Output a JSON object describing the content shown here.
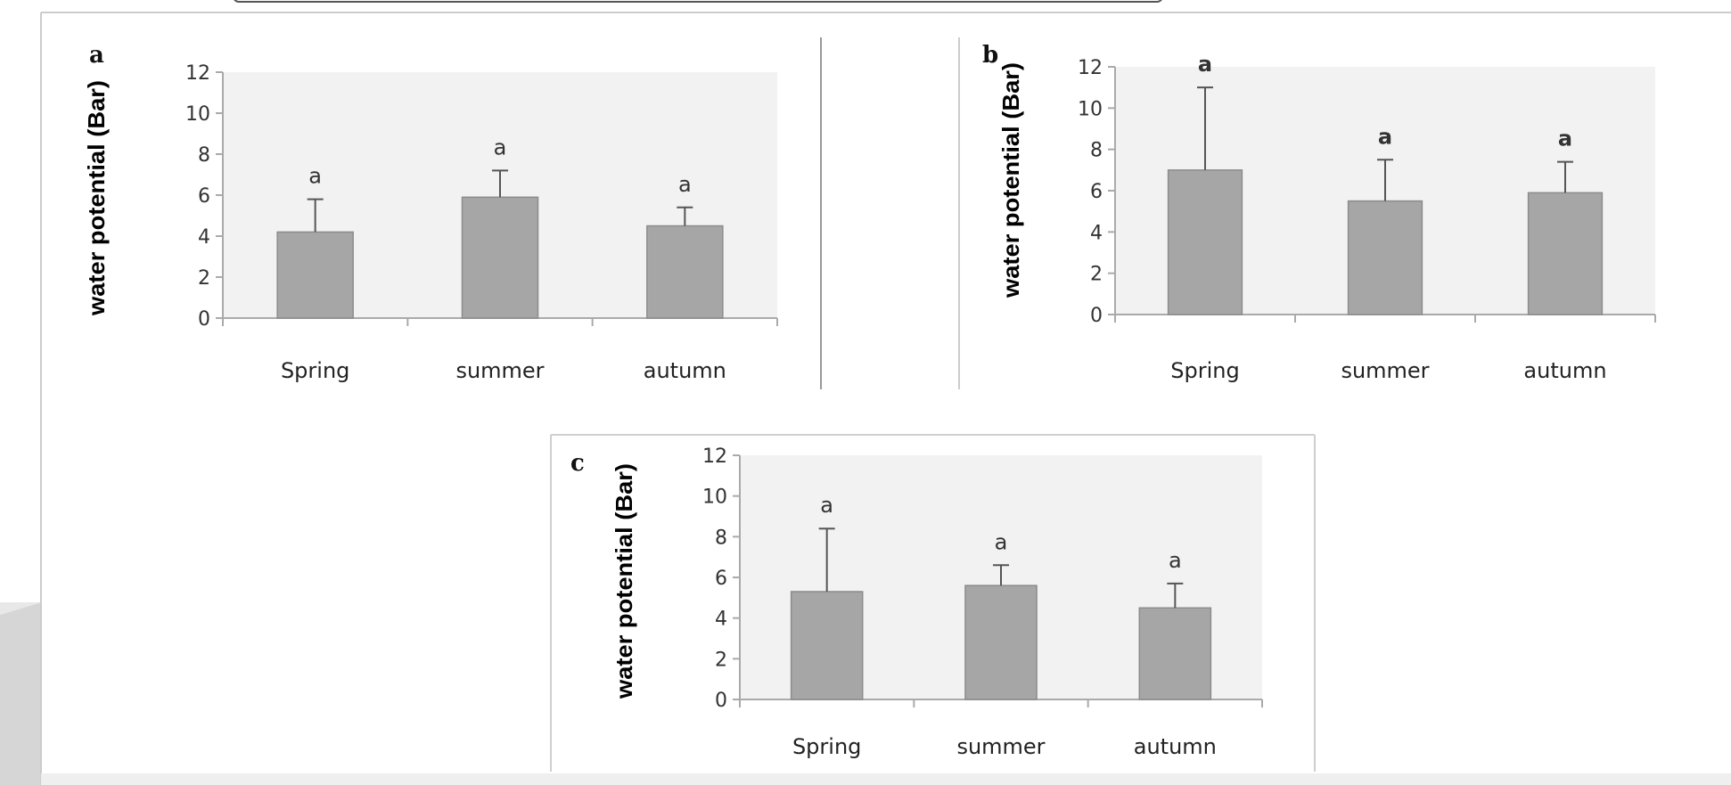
{
  "colors": {
    "plot_background": "#f2f2f2",
    "bar_fill": "#a6a6a6",
    "bar_stroke": "#8c8c8c",
    "axis": "#aaaaaa",
    "error_bar": "#555555",
    "frame": "#cfcfcf"
  },
  "chart_data": [
    {
      "type": "bar",
      "panel_label": "a",
      "title": "",
      "xlabel": "",
      "ylabel": "water potential (Bar)",
      "ylim": [
        0,
        12
      ],
      "yticks": [
        "0",
        "2",
        "4",
        "6",
        "8",
        "10",
        "12"
      ],
      "grid": false,
      "categories": [
        "Spring",
        "summer",
        "autumn"
      ],
      "values": [
        4.2,
        5.9,
        4.5
      ],
      "errors": [
        1.6,
        1.3,
        0.9
      ],
      "annotations": [
        "a",
        "a",
        "a"
      ],
      "annotation_bold": false
    },
    {
      "type": "bar",
      "panel_label": "b",
      "title": "",
      "xlabel": "",
      "ylabel": "water potential (Bar)",
      "ylim": [
        0,
        12
      ],
      "yticks": [
        "0",
        "2",
        "4",
        "6",
        "8",
        "10",
        "12"
      ],
      "grid": false,
      "categories": [
        "Spring",
        "summer",
        "autumn"
      ],
      "values": [
        7.0,
        5.5,
        5.9
      ],
      "errors": [
        4.0,
        2.0,
        1.5
      ],
      "annotations": [
        "a",
        "a",
        "a"
      ],
      "annotation_bold": true
    },
    {
      "type": "bar",
      "panel_label": "c",
      "title": "",
      "xlabel": "",
      "ylabel": "water potential (Bar)",
      "ylim": [
        0,
        12
      ],
      "yticks": [
        "0",
        "2",
        "4",
        "6",
        "8",
        "10",
        "12"
      ],
      "grid": false,
      "categories": [
        "Spring",
        "summer",
        "autumn"
      ],
      "values": [
        5.3,
        5.6,
        4.5
      ],
      "errors": [
        3.1,
        1.0,
        1.2
      ],
      "annotations": [
        "a",
        "a",
        "a"
      ],
      "annotation_bold": false
    }
  ]
}
